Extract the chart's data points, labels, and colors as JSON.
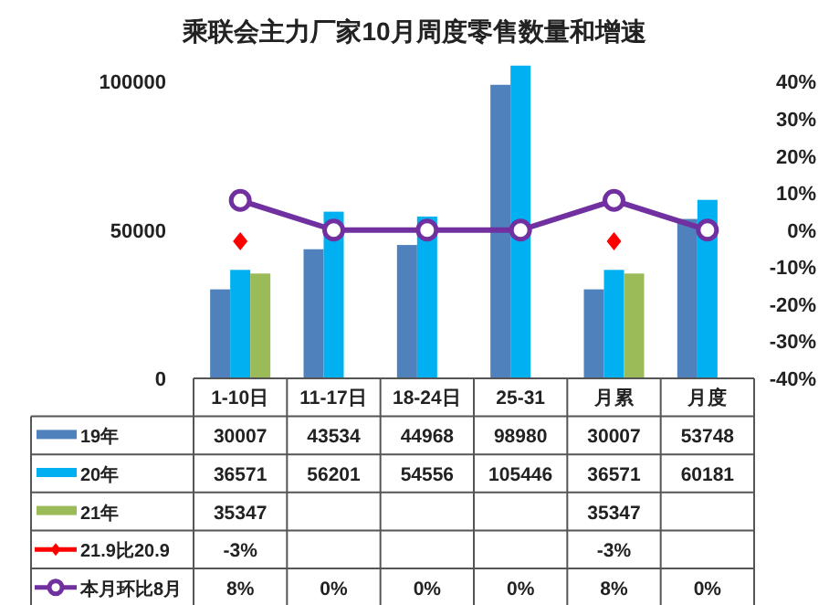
{
  "chart_data": {
    "type": "bar",
    "title": "乘联会主力厂家10月周度零售数量和增速",
    "categories": [
      "1-10日",
      "11-17日",
      "18-24日",
      "25-31",
      "月累",
      "月度"
    ],
    "ylim": [
      0,
      106000
    ],
    "yticks": [
      0,
      50000,
      100000
    ],
    "y2lim": [
      -40,
      44.8
    ],
    "y2ticks": [
      {
        "value": -40,
        "label": "-40%"
      },
      {
        "value": -30,
        "label": "-30%"
      },
      {
        "value": -20,
        "label": "-20%"
      },
      {
        "value": -10,
        "label": "-10%"
      },
      {
        "value": 0,
        "label": "0%"
      },
      {
        "value": 10,
        "label": "10%"
      },
      {
        "value": 20,
        "label": "20%"
      },
      {
        "value": 30,
        "label": "30%"
      },
      {
        "value": 40,
        "label": "40%"
      }
    ],
    "legend": "bottom",
    "grid": false,
    "series": [
      {
        "name": "19年",
        "color": "#4f81bd",
        "values": [
          30007,
          43534,
          44968,
          98980,
          30007,
          53748
        ],
        "value_labels": [
          "30007",
          "43534",
          "44968",
          "98980",
          "30007",
          "53748"
        ]
      },
      {
        "name": "20年",
        "color": "#00b0f0",
        "values": [
          36571,
          56201,
          54556,
          105446,
          36571,
          60181
        ],
        "value_labels": [
          "36571",
          "56201",
          "54556",
          "105446",
          "36571",
          "60181"
        ]
      },
      {
        "name": "21年",
        "color": "#9bbb59",
        "values": [
          35347,
          null,
          null,
          null,
          35347,
          null
        ],
        "value_labels": [
          "35347",
          null,
          null,
          null,
          "35347",
          null
        ]
      },
      {
        "name": "21.9比20.9",
        "type": "scatter",
        "axis": "y2",
        "color": "#ff0000",
        "marker": "diamond",
        "values": [
          -3,
          null,
          null,
          null,
          -3,
          null
        ],
        "value_labels": [
          "-3%",
          null,
          null,
          null,
          "-3%",
          null
        ]
      },
      {
        "name": "本月环比8月",
        "type": "line",
        "axis": "y2",
        "color": "#7030a0",
        "marker": "circle",
        "values": [
          8,
          0,
          0,
          0,
          8,
          0
        ],
        "value_labels": [
          "8%",
          "0%",
          "0%",
          "0%",
          "8%",
          "0%"
        ]
      }
    ]
  }
}
